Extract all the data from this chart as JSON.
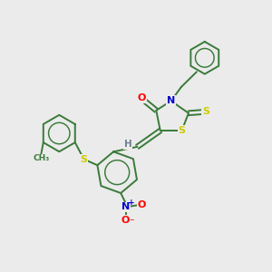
{
  "background_color": "#ebebeb",
  "bond_color": "#3a7a3a",
  "atom_colors": {
    "O": "#ff0000",
    "N": "#0000cc",
    "S": "#cccc00",
    "H": "#708090",
    "C": "#3a7a3a"
  },
  "figsize": [
    3.0,
    3.0
  ],
  "dpi": 100,
  "lw": 1.4
}
